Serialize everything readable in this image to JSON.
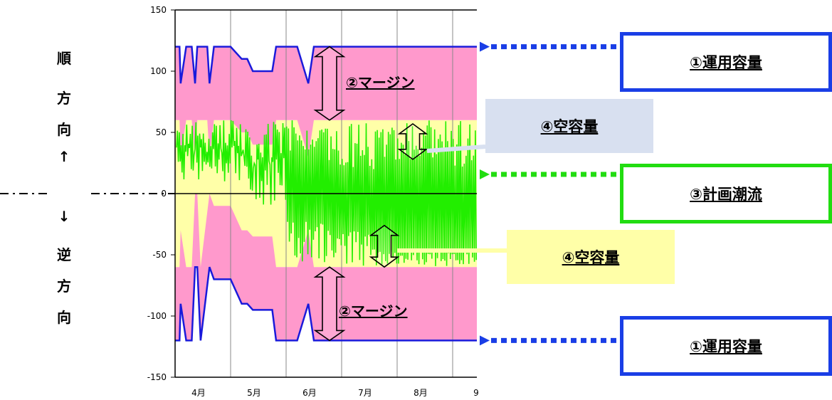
{
  "chart_data": {
    "type": "area",
    "y_ticks": [
      "150",
      "100",
      "50",
      "0",
      "-50",
      "-100",
      "-150"
    ],
    "ylim": [
      -150,
      150
    ],
    "x_ticks": [
      "4月",
      "5月",
      "6月",
      "7月",
      "8月",
      "9"
    ],
    "grid": true,
    "forward_capacity": {
      "x": [
        0,
        0.08,
        0.1,
        0.2,
        0.3,
        0.36,
        0.4,
        0.46,
        0.58,
        0.62,
        0.7,
        1.0,
        1.2,
        1.3,
        1.4,
        1.5,
        1.75,
        1.82,
        1.9,
        1.95,
        2.2,
        2.4,
        2.5,
        3.0,
        3.2,
        3.7,
        4.0,
        5.5
      ],
      "y": [
        120,
        120,
        90,
        120,
        120,
        90,
        120,
        120,
        120,
        90,
        120,
        120,
        110,
        110,
        100,
        100,
        100,
        120,
        120,
        120,
        120,
        90,
        120,
        120,
        120,
        120,
        120,
        120
      ]
    },
    "reverse_capacity": {
      "x": [
        0,
        0.08,
        0.1,
        0.2,
        0.3,
        0.36,
        0.4,
        0.46,
        0.58,
        0.62,
        0.7,
        1.0,
        1.2,
        1.3,
        1.4,
        1.5,
        1.75,
        1.82,
        1.9,
        1.95,
        2.2,
        2.4,
        2.5,
        3.0,
        3.2,
        3.7,
        4.0,
        5.5
      ],
      "y": [
        -120,
        -120,
        -90,
        -120,
        -120,
        -60,
        -60,
        -120,
        -75,
        -60,
        -70,
        -70,
        -90,
        -90,
        -95,
        -95,
        -95,
        -120,
        -120,
        -120,
        -120,
        -90,
        -120,
        -120,
        -120,
        -120,
        -120,
        -120
      ]
    },
    "margin": 60,
    "forward_margin_label": "②マージン",
    "reverse_margin_label": "②マージン"
  },
  "axis_labels": {
    "forward": [
      "順",
      "方",
      "向",
      "↑"
    ],
    "reverse": [
      "↓",
      "逆",
      "方",
      "向"
    ]
  },
  "callouts": {
    "capacity_top": "①運用容量",
    "empty_top": "④空容量",
    "planned_flow": "③計画潮流",
    "empty_bottom": "④空容量",
    "capacity_bottom": "①運用容量"
  },
  "colors": {
    "margin_fill": "#ff99cc",
    "empty_fill": "#ffffa8",
    "flow_line": "#22ee00",
    "capacity_line": "#1a1adb",
    "callout_blue_border": "#1a3ee6",
    "callout_green_border": "#22dd11",
    "callout_blue_fill": "#d8e0f0",
    "callout_yellow_fill": "#ffffa8"
  }
}
